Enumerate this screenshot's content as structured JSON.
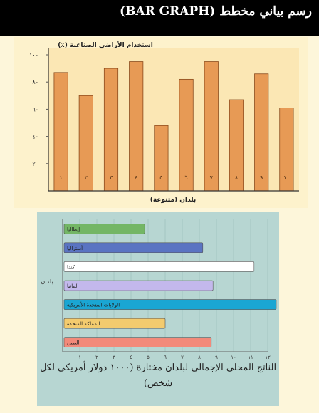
{
  "page_title": "رسم بياني مخطط (BAR GRAPH)",
  "chart_data": [
    {
      "type": "bar",
      "orientation": "vertical",
      "ylabel": "استخدام الأراضي الصناعية (٪)",
      "xlabel": "بلدان (متنوعة)",
      "categories": [
        "١",
        "٢",
        "٣",
        "٤",
        "٥",
        "٦",
        "٧",
        "٨",
        "٩",
        "١٠"
      ],
      "values": [
        87,
        70,
        90,
        95,
        48,
        82,
        95,
        67,
        86,
        61
      ],
      "ylim": [
        0,
        100
      ],
      "yticks": [
        "٢٠",
        "٤٠",
        "٦٠",
        "٨٠",
        "١٠٠"
      ],
      "ytick_values": [
        20,
        40,
        60,
        80,
        100
      ],
      "bar_color": "#e79a55",
      "grid": false
    },
    {
      "type": "bar",
      "orientation": "horizontal",
      "ylabel": "بلدان",
      "caption": "الناتج المحلي الإجمالي لبلدان مختارة (١٠٠٠ دولار أمريكي لكل شخص)",
      "categories": [
        "إيطاليا",
        "أستراليا",
        "كندا",
        "ألمانيا",
        "الولايات المتحدة الأمريكية",
        "المملكة المتحدة",
        "الصين"
      ],
      "values": [
        4.8,
        8.2,
        11.2,
        8.8,
        12.5,
        6.0,
        8.7
      ],
      "colors": [
        "#73b665",
        "#5a74c2",
        "#ffffff",
        "#c3b8ec",
        "#1aa6d3",
        "#f3cb6e",
        "#f28a7a"
      ],
      "xlim": [
        0,
        12
      ],
      "xticks": [
        "١",
        "٢",
        "٣",
        "٤",
        "٥",
        "٦",
        "٧",
        "٨",
        "٩",
        "١٠",
        "١١",
        "١٢"
      ],
      "grid": true
    }
  ]
}
